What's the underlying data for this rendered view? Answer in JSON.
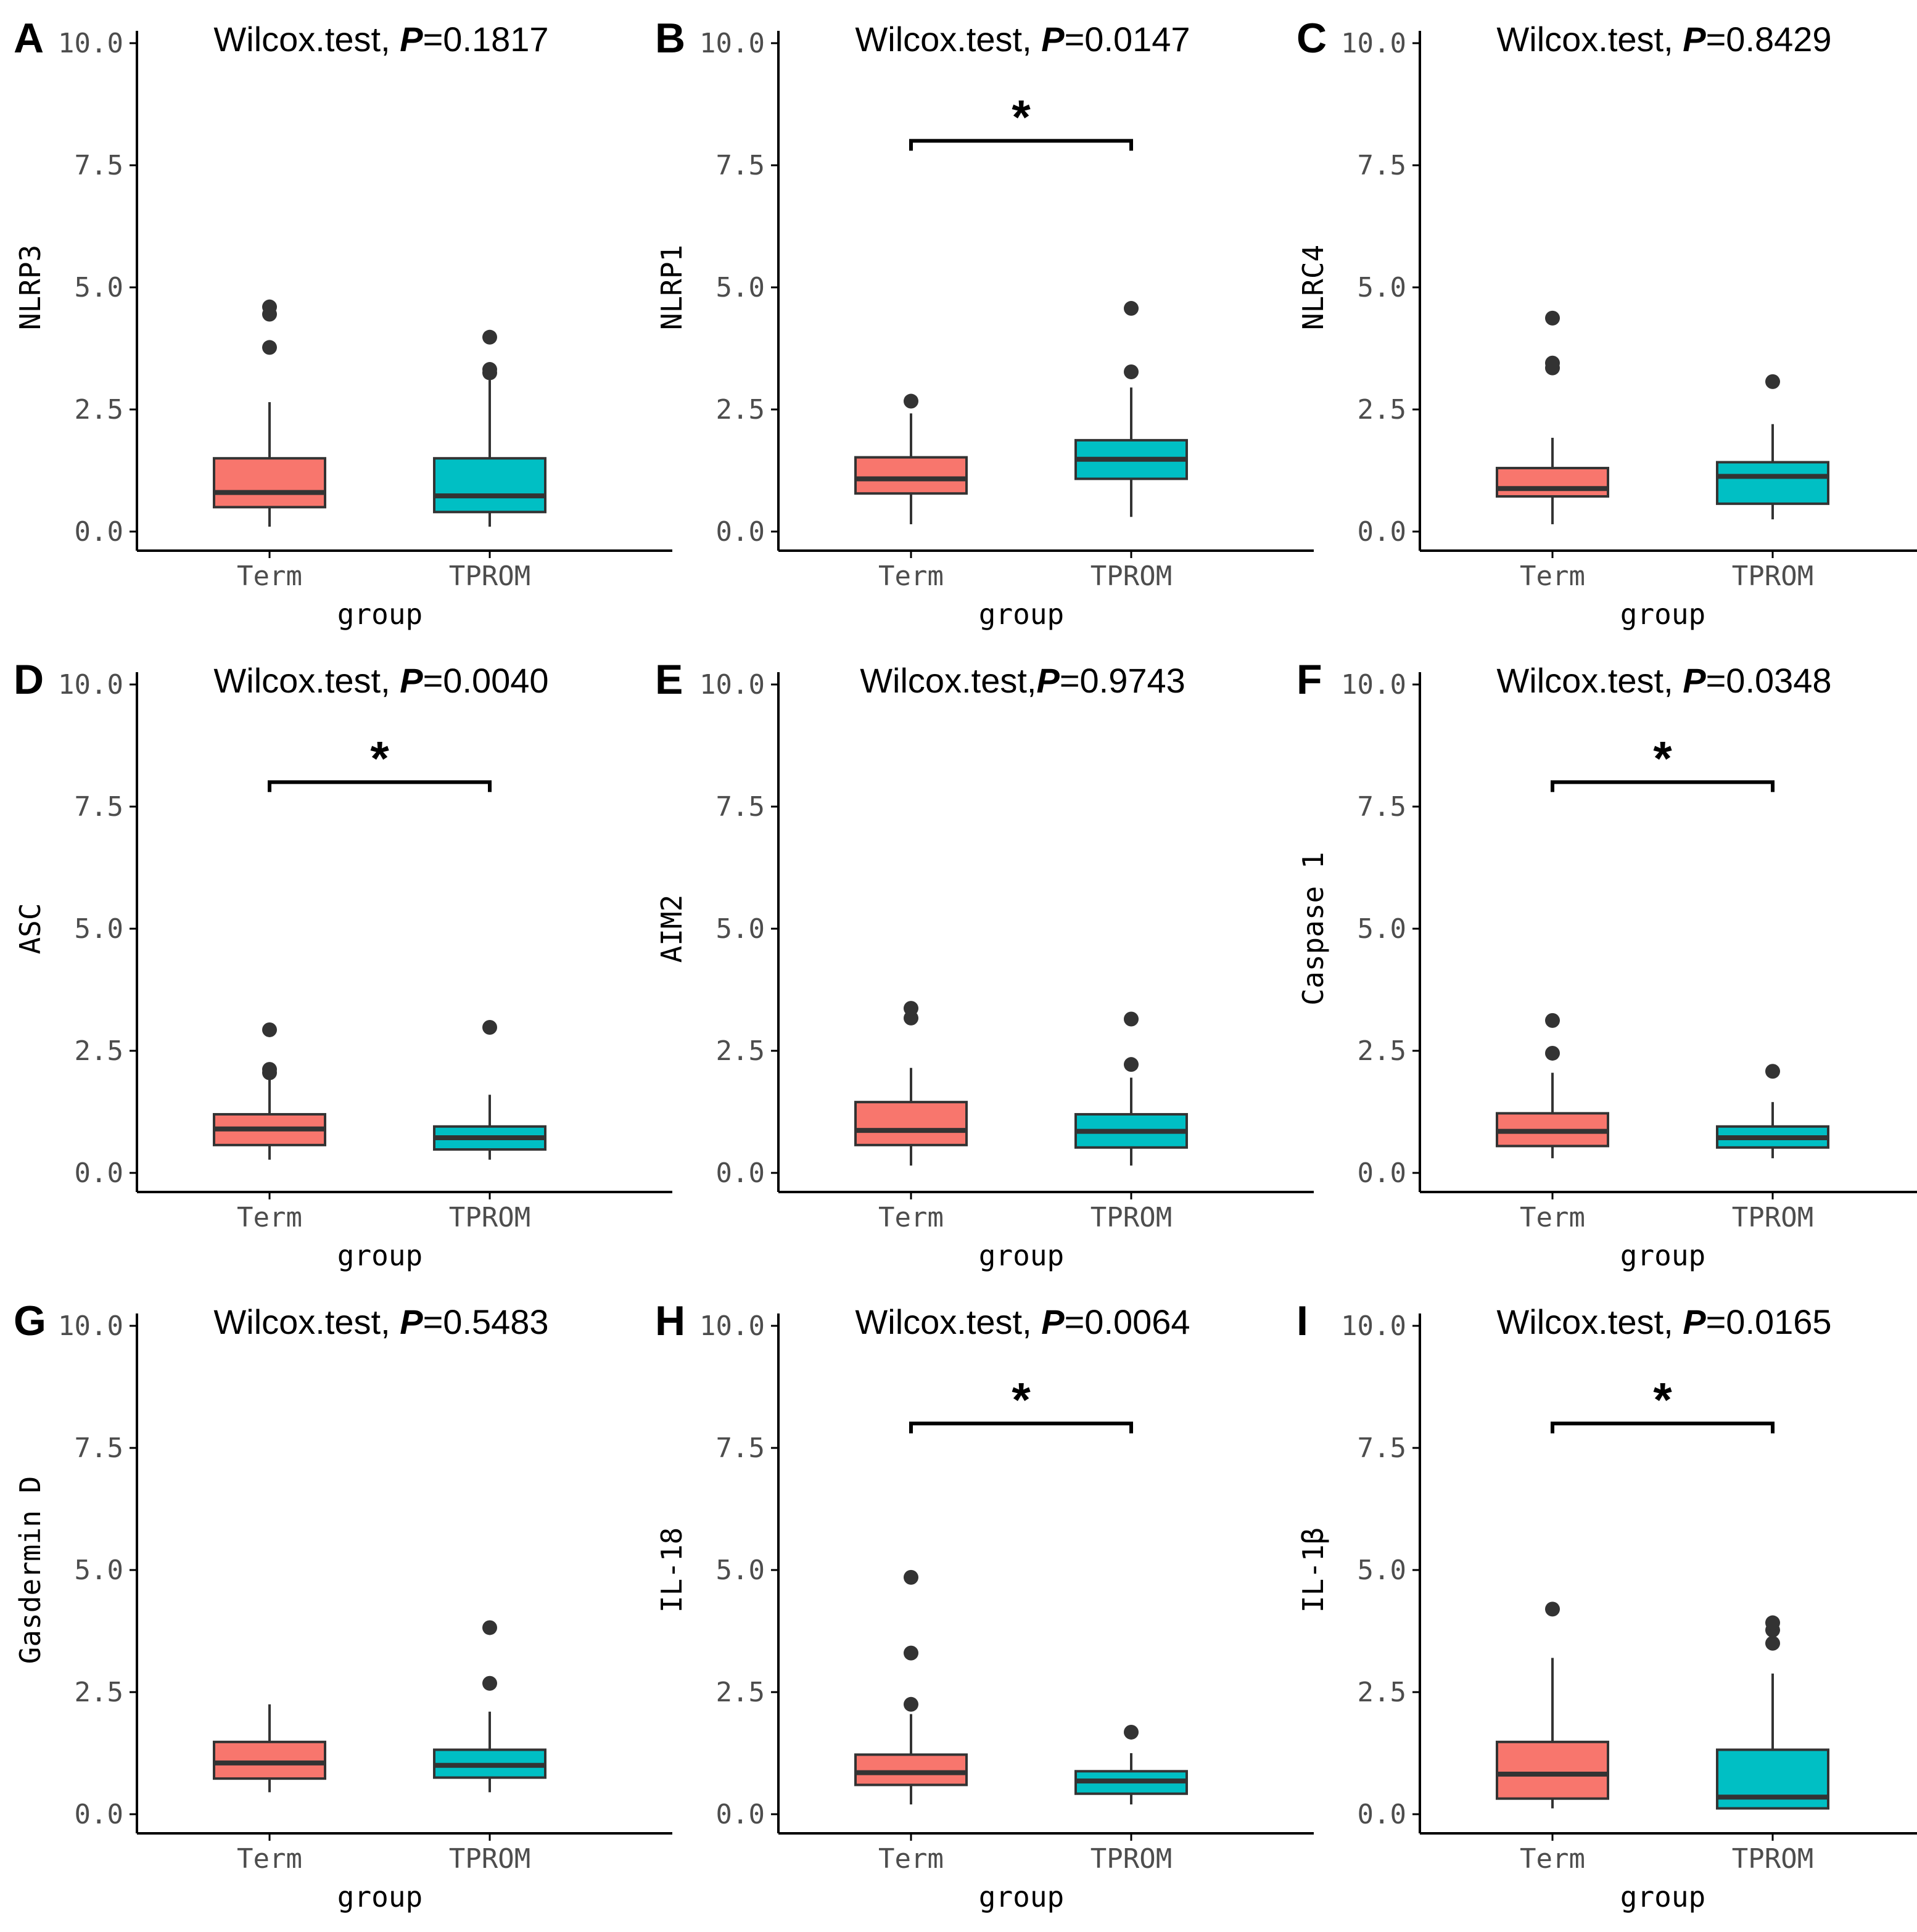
{
  "figure": {
    "colors": {
      "Term": "#F8766D",
      "TPROM": "#00BFC4",
      "line": "#333333",
      "axis": "#000000"
    }
  },
  "chart_data": [
    {
      "panel": "A",
      "type": "box",
      "title_prefix": "Wilcox.test, ",
      "p_label": "P",
      "p_value": "=0.1817",
      "ylabel": "NLRP3",
      "xlabel": "group",
      "categories": [
        "Term",
        "TPROM"
      ],
      "ylim": [
        0,
        10
      ],
      "yticks": [
        "0.0",
        "2.5",
        "5.0",
        "7.5",
        "10.0"
      ],
      "significance": "",
      "boxes": [
        {
          "group": "Term",
          "whisker_low": 0.1,
          "q1": 0.5,
          "median": 0.8,
          "q3": 1.5,
          "whisker_high": 2.65,
          "outliers": [
            3.77,
            4.45,
            4.6
          ]
        },
        {
          "group": "TPROM",
          "whisker_low": 0.1,
          "q1": 0.4,
          "median": 0.73,
          "q3": 1.5,
          "whisker_high": 3.1,
          "outliers": [
            3.25,
            3.32,
            3.98
          ]
        }
      ]
    },
    {
      "panel": "B",
      "type": "box",
      "title_prefix": "Wilcox.test, ",
      "p_label": "P",
      "p_value": "=0.0147",
      "ylabel": "NLRP1",
      "xlabel": "group",
      "categories": [
        "Term",
        "TPROM"
      ],
      "ylim": [
        0,
        10
      ],
      "yticks": [
        "0.0",
        "2.5",
        "5.0",
        "7.5",
        "10.0"
      ],
      "significance": "*",
      "boxes": [
        {
          "group": "Term",
          "whisker_low": 0.15,
          "q1": 0.78,
          "median": 1.08,
          "q3": 1.52,
          "whisker_high": 2.42,
          "outliers": [
            2.67
          ]
        },
        {
          "group": "TPROM",
          "whisker_low": 0.3,
          "q1": 1.08,
          "median": 1.48,
          "q3": 1.87,
          "whisker_high": 2.95,
          "outliers": [
            3.27,
            4.57
          ]
        }
      ]
    },
    {
      "panel": "C",
      "type": "box",
      "title_prefix": "Wilcox.test, ",
      "p_label": "P",
      "p_value": "=0.8429",
      "ylabel": "NLRC4",
      "xlabel": "group",
      "categories": [
        "Term",
        "TPROM"
      ],
      "ylim": [
        0,
        10
      ],
      "yticks": [
        "0.0",
        "2.5",
        "5.0",
        "7.5",
        "10.0"
      ],
      "significance": "",
      "boxes": [
        {
          "group": "Term",
          "whisker_low": 0.15,
          "q1": 0.72,
          "median": 0.88,
          "q3": 1.3,
          "whisker_high": 1.92,
          "outliers": [
            3.35,
            3.45,
            4.37
          ]
        },
        {
          "group": "TPROM",
          "whisker_low": 0.25,
          "q1": 0.57,
          "median": 1.13,
          "q3": 1.42,
          "whisker_high": 2.2,
          "outliers": [
            3.07
          ]
        }
      ]
    },
    {
      "panel": "D",
      "type": "box",
      "title_prefix": "Wilcox.test, ",
      "p_label": "P",
      "p_value": "=0.0040",
      "ylabel": "ASC",
      "xlabel": "group",
      "categories": [
        "Term",
        "TPROM"
      ],
      "ylim": [
        0,
        10
      ],
      "yticks": [
        "0.0",
        "2.5",
        "5.0",
        "7.5",
        "10.0"
      ],
      "significance": "*",
      "boxes": [
        {
          "group": "Term",
          "whisker_low": 0.27,
          "q1": 0.57,
          "median": 0.9,
          "q3": 1.2,
          "whisker_high": 1.95,
          "outliers": [
            2.05,
            2.12,
            2.93
          ]
        },
        {
          "group": "TPROM",
          "whisker_low": 0.27,
          "q1": 0.48,
          "median": 0.72,
          "q3": 0.95,
          "whisker_high": 1.6,
          "outliers": [
            2.98
          ]
        }
      ]
    },
    {
      "panel": "E",
      "type": "box",
      "title_prefix": "Wilcox.test,",
      "p_label": "P",
      "p_value": "=0.9743",
      "ylabel": "AIM2",
      "xlabel": "group",
      "categories": [
        "Term",
        "TPROM"
      ],
      "ylim": [
        0,
        10
      ],
      "yticks": [
        "0.0",
        "2.5",
        "5.0",
        "7.5",
        "10.0"
      ],
      "significance": "",
      "boxes": [
        {
          "group": "Term",
          "whisker_low": 0.15,
          "q1": 0.57,
          "median": 0.87,
          "q3": 1.45,
          "whisker_high": 2.15,
          "outliers": [
            3.17,
            3.37
          ]
        },
        {
          "group": "TPROM",
          "whisker_low": 0.15,
          "q1": 0.52,
          "median": 0.85,
          "q3": 1.2,
          "whisker_high": 1.95,
          "outliers": [
            2.22,
            3.15
          ]
        }
      ]
    },
    {
      "panel": "F",
      "type": "box",
      "title_prefix": "Wilcox.test, ",
      "p_label": "P",
      "p_value": "=0.0348",
      "ylabel": "Caspase 1",
      "xlabel": "group",
      "categories": [
        "Term",
        "TPROM"
      ],
      "ylim": [
        0,
        10
      ],
      "yticks": [
        "0.0",
        "2.5",
        "5.0",
        "7.5",
        "10.0"
      ],
      "significance": "*",
      "boxes": [
        {
          "group": "Term",
          "whisker_low": 0.3,
          "q1": 0.55,
          "median": 0.85,
          "q3": 1.22,
          "whisker_high": 2.05,
          "outliers": [
            2.45,
            3.12
          ]
        },
        {
          "group": "TPROM",
          "whisker_low": 0.3,
          "q1": 0.52,
          "median": 0.72,
          "q3": 0.95,
          "whisker_high": 1.45,
          "outliers": [
            2.08
          ]
        }
      ]
    },
    {
      "panel": "G",
      "type": "box",
      "title_prefix": "Wilcox.test, ",
      "p_label": "P",
      "p_value": "=0.5483",
      "ylabel": "Gasdermin D",
      "xlabel": "group",
      "categories": [
        "Term",
        "TPROM"
      ],
      "ylim": [
        0,
        10
      ],
      "yticks": [
        "0.0",
        "2.5",
        "5.0",
        "7.5",
        "10.0"
      ],
      "significance": "",
      "boxes": [
        {
          "group": "Term",
          "whisker_low": 0.45,
          "q1": 0.73,
          "median": 1.05,
          "q3": 1.48,
          "whisker_high": 2.25,
          "outliers": []
        },
        {
          "group": "TPROM",
          "whisker_low": 0.45,
          "q1": 0.75,
          "median": 1.0,
          "q3": 1.32,
          "whisker_high": 2.1,
          "outliers": [
            2.68,
            3.82
          ]
        }
      ]
    },
    {
      "panel": "H",
      "type": "box",
      "title_prefix": "Wilcox.test, ",
      "p_label": "P",
      "p_value": "=0.0064",
      "ylabel": "IL-18",
      "xlabel": "group",
      "categories": [
        "Term",
        "TPROM"
      ],
      "ylim": [
        0,
        10
      ],
      "yticks": [
        "0.0",
        "2.5",
        "5.0",
        "7.5",
        "10.0"
      ],
      "significance": "*",
      "boxes": [
        {
          "group": "Term",
          "whisker_low": 0.2,
          "q1": 0.6,
          "median": 0.85,
          "q3": 1.22,
          "whisker_high": 2.05,
          "outliers": [
            2.25,
            3.3,
            4.85
          ]
        },
        {
          "group": "TPROM",
          "whisker_low": 0.2,
          "q1": 0.42,
          "median": 0.68,
          "q3": 0.88,
          "whisker_high": 1.25,
          "outliers": [
            1.68
          ]
        }
      ]
    },
    {
      "panel": "I",
      "type": "box",
      "title_prefix": "Wilcox.test, ",
      "p_label": "P",
      "p_value": "=0.0165",
      "ylabel": "IL-1β",
      "xlabel": "group",
      "categories": [
        "Term",
        "TPROM"
      ],
      "ylim": [
        0,
        10
      ],
      "yticks": [
        "0.0",
        "2.5",
        "5.0",
        "7.5",
        "10.0"
      ],
      "significance": "*",
      "boxes": [
        {
          "group": "Term",
          "whisker_low": 0.12,
          "q1": 0.32,
          "median": 0.82,
          "q3": 1.48,
          "whisker_high": 3.2,
          "outliers": [
            4.2
          ]
        },
        {
          "group": "TPROM",
          "whisker_low": 0.1,
          "q1": 0.12,
          "median": 0.35,
          "q3": 1.32,
          "whisker_high": 2.88,
          "outliers": [
            3.5,
            3.77,
            3.92
          ]
        }
      ]
    }
  ]
}
